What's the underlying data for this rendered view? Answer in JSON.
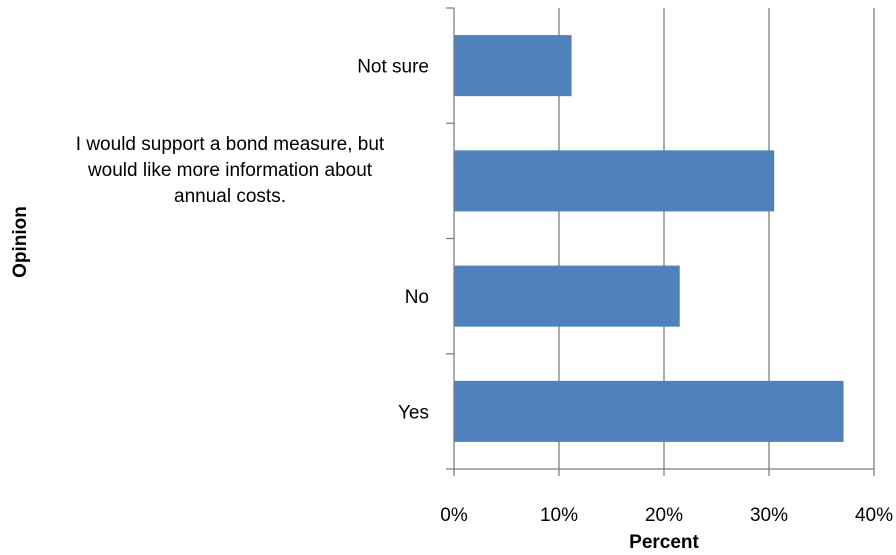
{
  "chart_data": {
    "type": "bar",
    "orientation": "horizontal",
    "categories": [
      "Not sure",
      "I would support a bond measure, but would like more information  about annual costs.",
      "No",
      "Yes"
    ],
    "category_label_lines": [
      [
        "Not sure"
      ],
      [
        "I would support a bond measure, but",
        "would like more information  about",
        "annual costs."
      ],
      [
        "No"
      ],
      [
        "Yes"
      ]
    ],
    "values": [
      11.2,
      30.5,
      21.5,
      37.1
    ],
    "xlabel": "Percent",
    "ylabel": "Opinion",
    "xlim": [
      0,
      40
    ],
    "x_ticks": [
      "0%",
      "10%",
      "20%",
      "30%",
      "40%"
    ],
    "grid": "vertical",
    "legend": "none",
    "bar_color": "#4f81bd",
    "grid_color": "#7f7f7f"
  }
}
